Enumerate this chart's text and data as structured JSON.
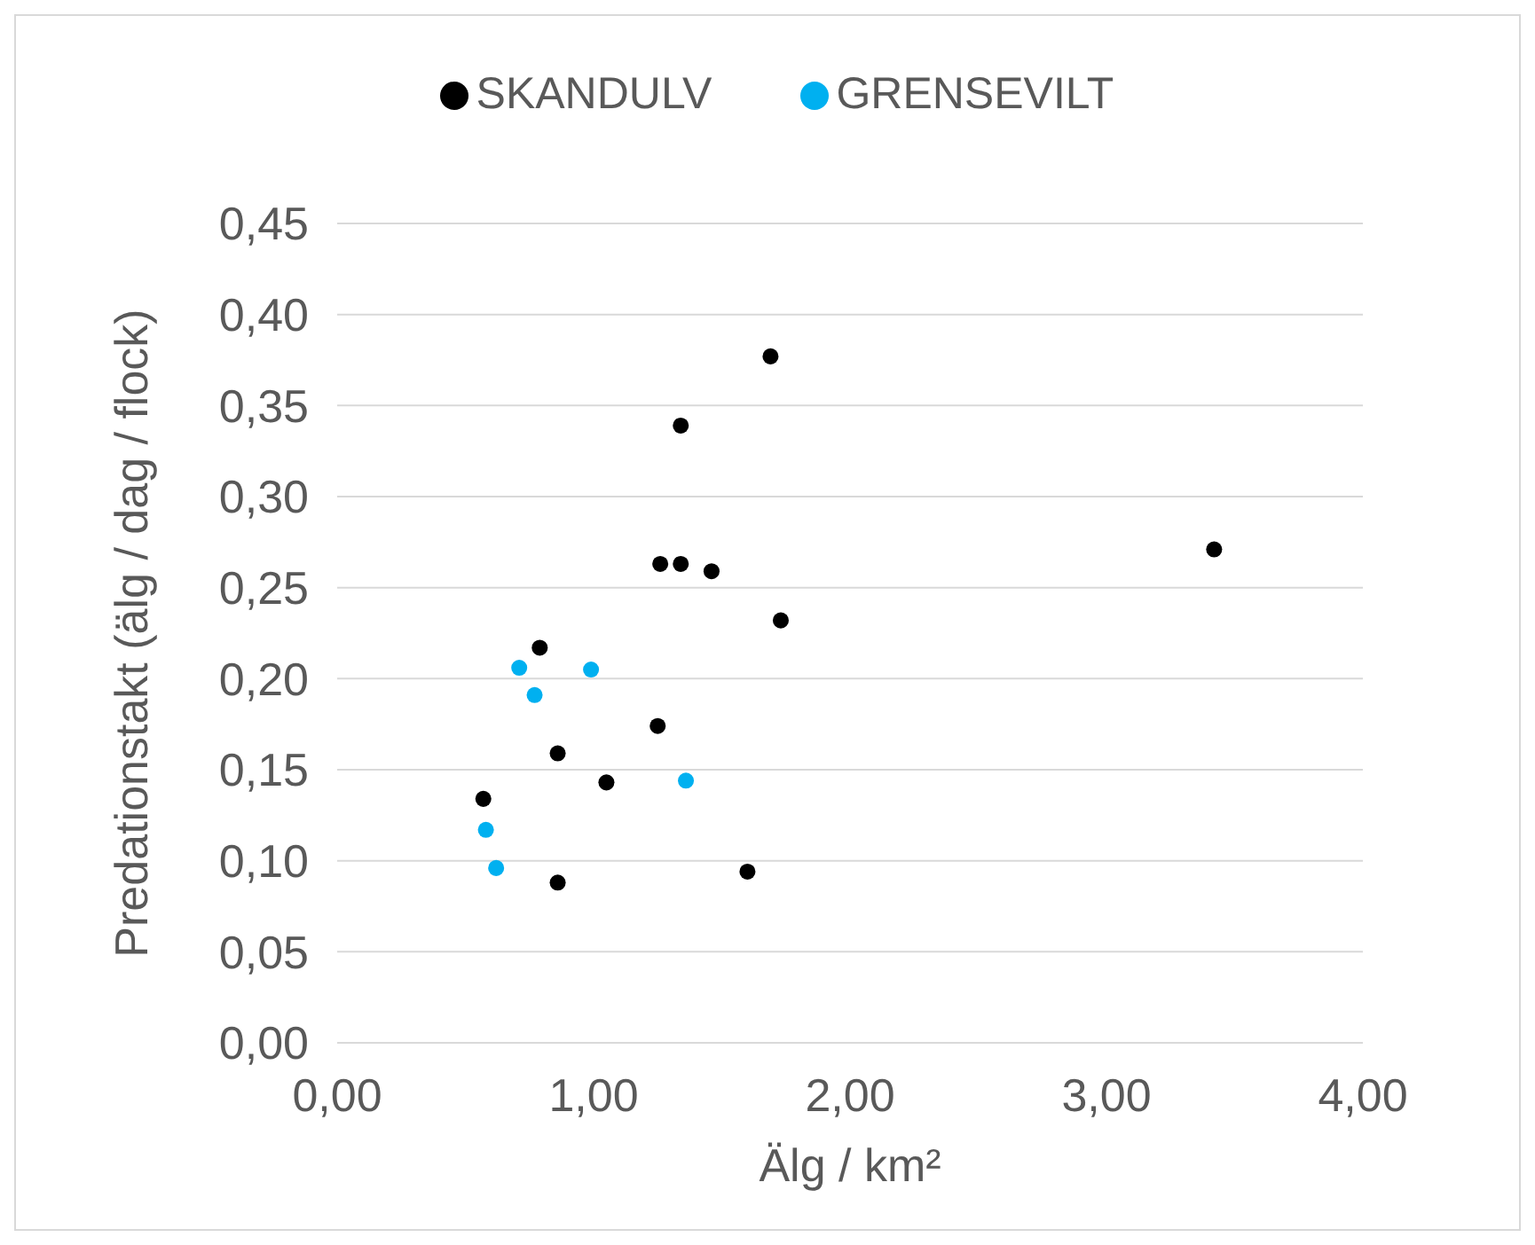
{
  "chart_data": {
    "type": "scatter",
    "xlabel": "Älg / km²",
    "ylabel": "Predationstakt (älg / dag / flock)",
    "xlim": [
      0,
      4
    ],
    "xticks": [
      {
        "value": 0,
        "label": "0,00"
      },
      {
        "value": 1,
        "label": "1,00"
      },
      {
        "value": 2,
        "label": "2,00"
      },
      {
        "value": 3,
        "label": "3,00"
      },
      {
        "value": 4,
        "label": "4,00"
      }
    ],
    "ylim": [
      0,
      0.45
    ],
    "yticks": [
      {
        "value": 0,
        "label": "0,00"
      },
      {
        "value": 0.05,
        "label": "0,05"
      },
      {
        "value": 0.1,
        "label": "0,10"
      },
      {
        "value": 0.15,
        "label": "0,15"
      },
      {
        "value": 0.2,
        "label": "0,20"
      },
      {
        "value": 0.25,
        "label": "0,25"
      },
      {
        "value": 0.3,
        "label": "0,30"
      },
      {
        "value": 0.35,
        "label": "0,35"
      },
      {
        "value": 0.4,
        "label": "0,40"
      },
      {
        "value": 0.45,
        "label": "0,45"
      }
    ],
    "grid": "y",
    "legend": "top",
    "marker": "circle",
    "series": [
      {
        "name": "SKANDULV",
        "color": "#000000",
        "x": [
          0.57,
          0.79,
          0.86,
          0.86,
          1.05,
          1.25,
          1.26,
          1.34,
          1.34,
          1.46,
          1.69,
          1.73,
          1.6,
          3.42
        ],
        "values": [
          0.134,
          0.217,
          0.159,
          0.088,
          0.143,
          0.174,
          0.263,
          0.263,
          0.339,
          0.259,
          0.377,
          0.232,
          0.094,
          0.271
        ]
      },
      {
        "name": "GRENSEVILT",
        "color": "#00b0f0",
        "x": [
          0.71,
          0.77,
          0.99,
          0.58,
          0.62,
          1.36
        ],
        "values": [
          0.206,
          0.191,
          0.205,
          0.117,
          0.096,
          0.144
        ]
      }
    ]
  }
}
